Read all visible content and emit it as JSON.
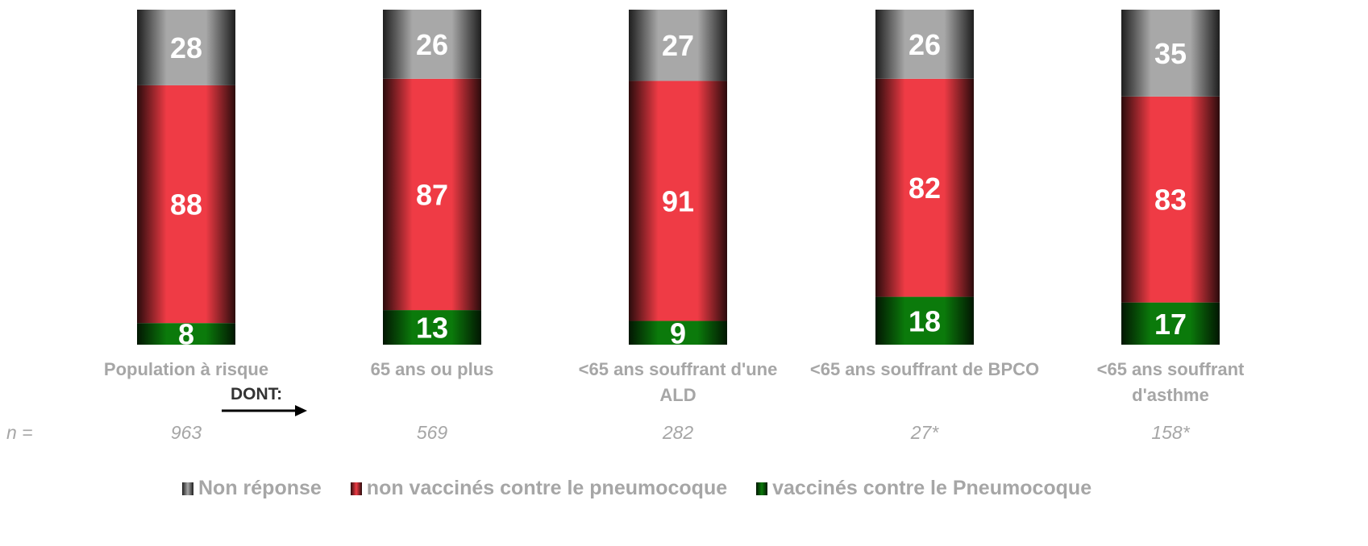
{
  "chart_data": {
    "type": "bar",
    "stacked": "percent",
    "categories": [
      "Population à risque",
      "65 ans ou plus",
      "<65 ans souffrant d'une ALD",
      "<65 ans souffrant de BPCO",
      "<65 ans souffrant d'asthme"
    ],
    "series": [
      {
        "name": "vaccinés contre le Pneumocoque",
        "color": "#0b7a0b",
        "values": [
          8,
          13,
          9,
          18,
          17
        ]
      },
      {
        "name": "non vaccinés contre le pneumocoque",
        "color": "#ef3b45",
        "values": [
          88,
          87,
          91,
          82,
          83
        ]
      },
      {
        "name": "Non réponse",
        "color": "#a8a8a8",
        "values": [
          28,
          26,
          27,
          26,
          35
        ]
      }
    ],
    "legend_order": [
      2,
      1,
      0
    ],
    "n": {
      "label": "n =",
      "values": [
        "963",
        "569",
        "282",
        "27*",
        "158*"
      ]
    },
    "annotation": "DONT:"
  }
}
